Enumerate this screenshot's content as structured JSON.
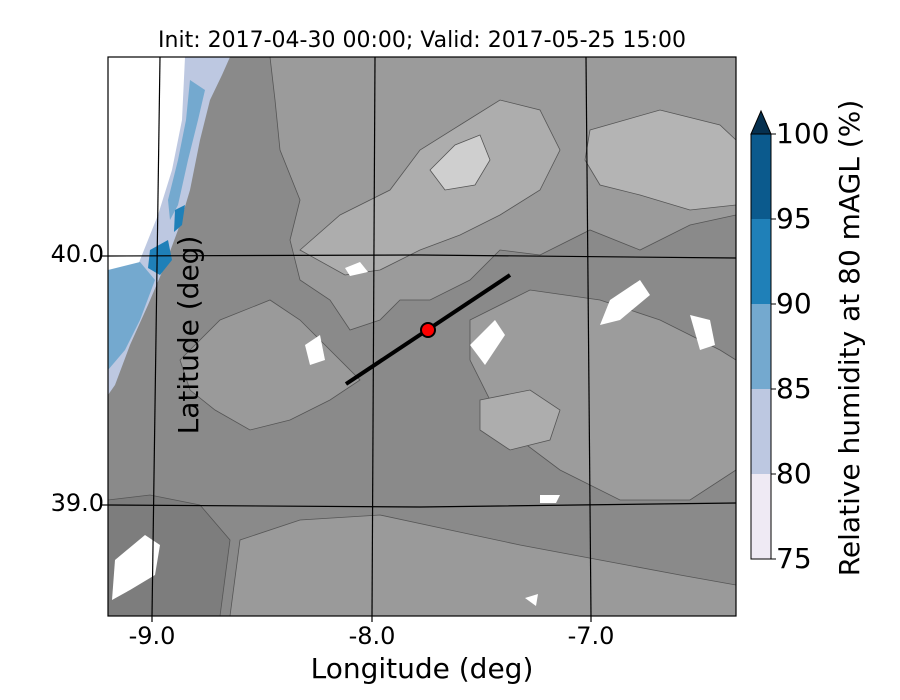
{
  "title": "Init: 2017-04-30 00:00; Valid: 2017-05-25 15:00",
  "axes": {
    "xlabel": "Longitude (deg)",
    "ylabel": "Latitude (deg)",
    "xticks": [
      "-9.0",
      "-8.0",
      "-7.0"
    ],
    "yticks": [
      "40.0",
      "39.0"
    ]
  },
  "colorbar": {
    "label": "Relative humidity at 80 mAGL (%)",
    "ticks": [
      "75",
      "80",
      "85",
      "90",
      "95",
      "100"
    ],
    "colors": [
      "#efeaf4",
      "#bdc8e1",
      "#74a9cf",
      "#1f80b8",
      "#0b5a8d"
    ],
    "extend_color": "#06304f"
  },
  "map": {
    "terrain_color_dark": "#888888",
    "terrain_color_light": "#d6d6d6",
    "transect_color": "#000000",
    "marker_color": "#ff0000"
  }
}
